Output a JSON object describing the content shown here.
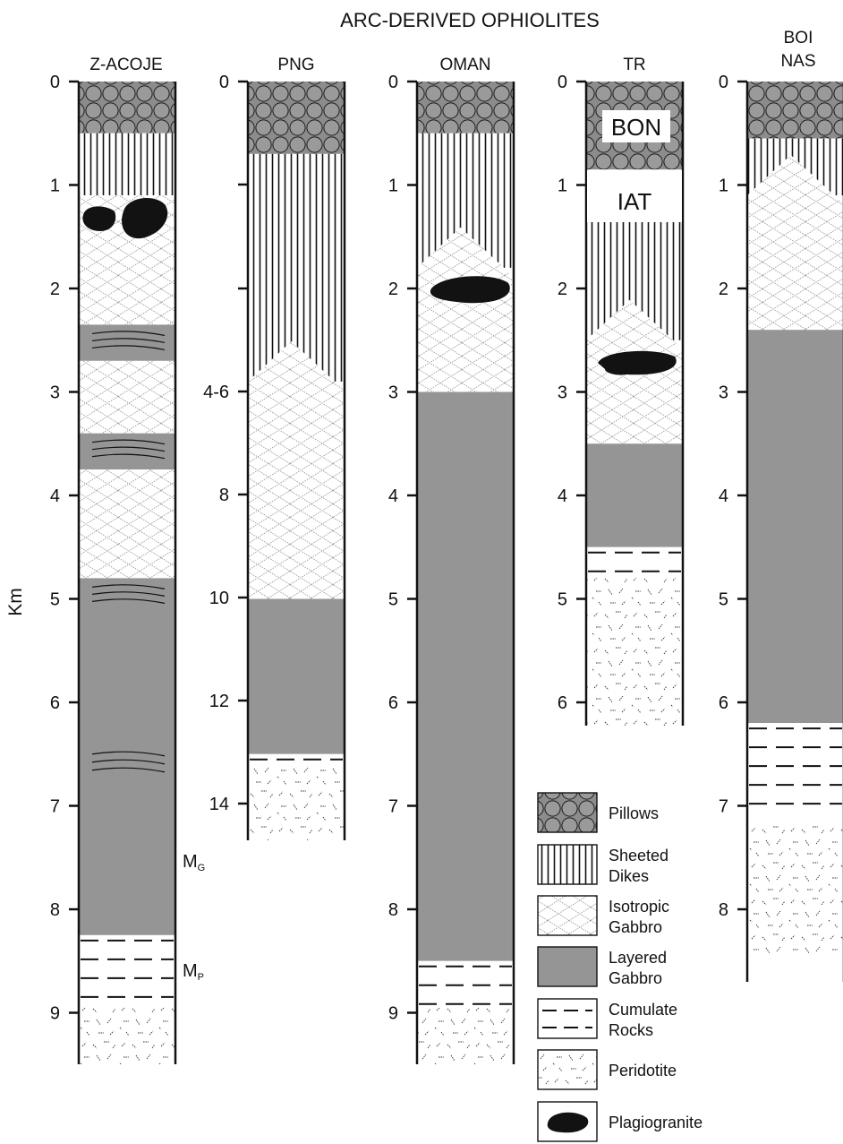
{
  "title": "ARC-DERIVED OPHIOLITES",
  "y_axis_label": "Km",
  "colors": {
    "layered_gabbro": "#959595",
    "pillow_bg": "#8c8c8c",
    "ink": "#111111"
  },
  "columns": [
    {
      "name": "Z-ACOJE",
      "ticks": [
        "0",
        "1",
        "2",
        "3",
        "4",
        "5",
        "6",
        "7",
        "8",
        "9"
      ],
      "extra_labels": [
        "MG",
        "MP"
      ],
      "units": [
        {
          "rock": "Pillows",
          "from": 0,
          "to": 0.5
        },
        {
          "rock": "Sheeted Dikes",
          "from": 0.5,
          "to": 1.1
        },
        {
          "rock": "Isotropic Gabbro",
          "from": 1.1,
          "to": 2.35
        },
        {
          "rock": "Layered Gabbro",
          "from": 2.35,
          "to": 2.7
        },
        {
          "rock": "Isotropic Gabbro",
          "from": 2.7,
          "to": 3.4
        },
        {
          "rock": "Layered Gabbro",
          "from": 3.4,
          "to": 3.75
        },
        {
          "rock": "Isotropic Gabbro",
          "from": 3.75,
          "to": 4.8
        },
        {
          "rock": "Layered Gabbro",
          "from": 4.8,
          "to": 8.25
        },
        {
          "rock": "Cumulate Rocks",
          "from": 8.25,
          "to": 8.95
        },
        {
          "rock": "Peridotite",
          "from": 8.95,
          "to": 9.6
        }
      ]
    },
    {
      "name": "PNG",
      "ticks": [
        "0",
        "",
        "",
        "4-6",
        "8",
        "10",
        "12",
        "14"
      ],
      "units": [
        {
          "rock": "Pillows",
          "from": 0,
          "to": 0.7
        },
        {
          "rock": "Sheeted Dikes",
          "from": 0.7,
          "to": 2.9
        },
        {
          "rock": "Isotropic Gabbro",
          "from": 2.9,
          "to": 5.0
        },
        {
          "rock": "Layered Gabbro",
          "from": 5.0,
          "to": 6.5
        },
        {
          "rock": "Cumulate Rocks",
          "from": 6.5,
          "to": 6.6
        },
        {
          "rock": "Peridotite",
          "from": 6.6,
          "to": 7.35
        }
      ]
    },
    {
      "name": "OMAN",
      "ticks": [
        "0",
        "1",
        "2",
        "3",
        "4",
        "5",
        "6",
        "7",
        "8",
        "9"
      ],
      "units": [
        {
          "rock": "Pillows",
          "from": 0,
          "to": 0.5
        },
        {
          "rock": "Sheeted Dikes",
          "from": 0.5,
          "to": 1.8
        },
        {
          "rock": "Isotropic Gabbro",
          "from": 1.8,
          "to": 3.0
        },
        {
          "rock": "Layered Gabbro",
          "from": 3.0,
          "to": 8.5
        },
        {
          "rock": "Cumulate Rocks",
          "from": 8.5,
          "to": 8.95
        },
        {
          "rock": "Peridotite",
          "from": 8.95,
          "to": 9.65
        }
      ]
    },
    {
      "name": "TR",
      "ticks": [
        "0",
        "1",
        "2",
        "3",
        "4",
        "5",
        "6"
      ],
      "inner_labels": [
        "BON",
        "IAT"
      ],
      "units": [
        {
          "rock": "Pillows",
          "from": 0,
          "to": 0.85
        },
        {
          "rock": "Sheeted Dikes",
          "from": 1.35,
          "to": 2.5
        },
        {
          "rock": "Isotropic Gabbro",
          "from": 2.5,
          "to": 3.5
        },
        {
          "rock": "Layered Gabbro",
          "from": 3.5,
          "to": 4.5
        },
        {
          "rock": "Cumulate Rocks",
          "from": 4.5,
          "to": 4.8
        },
        {
          "rock": "Peridotite",
          "from": 4.8,
          "to": 6.35
        }
      ]
    },
    {
      "name_lines": [
        "BOI",
        "NAS"
      ],
      "ticks": [
        "0",
        "1",
        "2",
        "3",
        "4",
        "5",
        "6",
        "7",
        "8"
      ],
      "units": [
        {
          "rock": "Pillows",
          "from": 0,
          "to": 0.55
        },
        {
          "rock": "Sheeted Dikes",
          "from": 0.55,
          "to": 1.1
        },
        {
          "rock": "Isotropic Gabbro",
          "from": 1.1,
          "to": 2.4
        },
        {
          "rock": "Layered Gabbro",
          "from": 2.4,
          "to": 6.2
        },
        {
          "rock": "Cumulate Rocks",
          "from": 6.2,
          "to": 7.15
        },
        {
          "rock": "Peridotite",
          "from": 7.15,
          "to": 8.45
        }
      ]
    }
  ],
  "legend": [
    {
      "pattern": "pillows",
      "lines": [
        "Pillows"
      ]
    },
    {
      "pattern": "dikes",
      "lines": [
        "Sheeted",
        "Dikes"
      ]
    },
    {
      "pattern": "isotropic",
      "lines": [
        "Isotropic",
        "Gabbro"
      ]
    },
    {
      "pattern": "layered",
      "lines": [
        "Layered",
        "Gabbro"
      ]
    },
    {
      "pattern": "cumulate",
      "lines": [
        "Cumulate",
        "Rocks"
      ]
    },
    {
      "pattern": "peridotite",
      "lines": [
        "Peridotite"
      ]
    },
    {
      "pattern": "plagiogranite",
      "lines": [
        "Plagiogranite"
      ]
    }
  ]
}
